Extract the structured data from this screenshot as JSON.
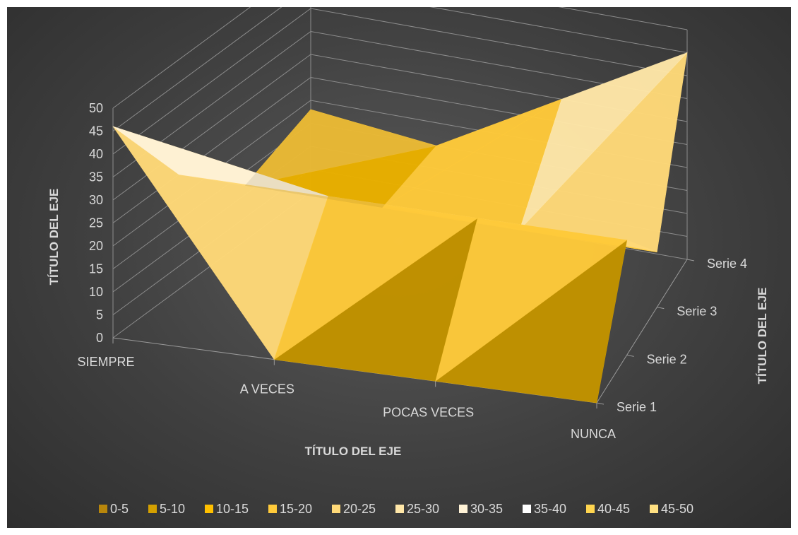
{
  "chart_data": {
    "type": "surface",
    "categories": [
      "SIEMPRE",
      "A VECES",
      "POCAS VECES",
      "NUNCA"
    ],
    "series": [
      {
        "name": "Serie 1",
        "values": [
          46,
          0,
          0,
          0
        ]
      },
      {
        "name": "Serie 2",
        "values": [
          25,
          25,
          25,
          25
        ]
      },
      {
        "name": "Serie 3",
        "values": [
          12,
          12,
          12,
          12
        ]
      },
      {
        "name": "Serie 4",
        "values": [
          18,
          15,
          30,
          45
        ]
      }
    ],
    "z_ticks": [
      "0",
      "5",
      "10",
      "15",
      "20",
      "25",
      "30",
      "35",
      "40",
      "45",
      "50"
    ],
    "zlim": [
      0,
      50
    ],
    "xlabel": "TÍTULO DEL EJE",
    "ylabel": "TÍTULO DEL EJE",
    "zlabel": "TÍTULO DEL EJE",
    "legend": {
      "position": "bottom",
      "entries": [
        {
          "label": "0-5",
          "color": "#b8860b"
        },
        {
          "label": "5-10",
          "color": "#d4a000"
        },
        {
          "label": "10-15",
          "color": "#ffc000"
        },
        {
          "label": "15-20",
          "color": "#ffca3a"
        },
        {
          "label": "20-25",
          "color": "#ffd978"
        },
        {
          "label": "25-30",
          "color": "#ffe7a8"
        },
        {
          "label": "30-35",
          "color": "#fff2d6"
        },
        {
          "label": "35-40",
          "color": "#ffffff"
        },
        {
          "label": "40-45",
          "color": "#ffd54f"
        },
        {
          "label": "45-50",
          "color": "#ffe082"
        }
      ]
    },
    "grid": true
  }
}
